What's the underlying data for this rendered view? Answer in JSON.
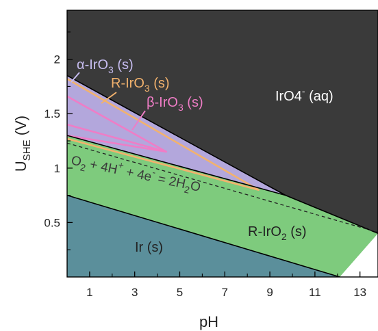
{
  "chart_data": {
    "type": "area",
    "xlabel": "pH",
    "ylabel_main": "U",
    "ylabel_sub": "SHE",
    "ylabel_unit": " (V)",
    "xlim": [
      0,
      13.8
    ],
    "ylim": [
      0.0,
      2.45
    ],
    "xticks_major": [
      1,
      3,
      5,
      7,
      9,
      11,
      13
    ],
    "xticks_minor": [
      2,
      4,
      6,
      8,
      10,
      12
    ],
    "yticks_major": [
      0.5,
      1,
      1.5,
      2
    ],
    "ytick_labels": [
      "0.5",
      "1",
      "1.5",
      "2"
    ],
    "yticks_minor": [
      0.25,
      0.75,
      1.25,
      1.75,
      2.25
    ],
    "colors": {
      "IrO4_aq": "#3a3a3a",
      "IrO3": "#b3a7dc",
      "IrO2": "#7ecb7d",
      "Ir": "#5b8f9b",
      "R_IrO3_line": "#f2b26d",
      "beta_IrO3_line": "#ef7dc6"
    },
    "regions": [
      {
        "label": "IrO4",
        "sup": "-",
        "tail": " (aq)",
        "color": "#3a3a3a",
        "text_color": "#ffffff",
        "polygon": [
          [
            0,
            2.45
          ],
          [
            13.8,
            2.45
          ],
          [
            13.8,
            0.4
          ],
          [
            9.7,
            0.75
          ],
          [
            0,
            1.85
          ]
        ]
      },
      {
        "label": "α-IrO",
        "sub": "3",
        "tail": " (s)",
        "color": "#b3a7dc",
        "text_color": "#c7bdf0",
        "polygon": [
          [
            0,
            1.85
          ],
          [
            9.7,
            0.75
          ],
          [
            0,
            1.3
          ]
        ]
      },
      {
        "label": "R-IrO",
        "sub": "2",
        "tail": " (s)",
        "color": "#7ecb7d",
        "text_color": "#222222",
        "polygon": [
          [
            0,
            1.3
          ],
          [
            9.7,
            0.75
          ],
          [
            13.8,
            0.4
          ],
          [
            12.1,
            0
          ],
          [
            0,
            0
          ],
          [
            0,
            0.75
          ]
        ]
      },
      {
        "label": "Ir",
        "tail": " (s)",
        "color": "#5b8f9b",
        "text_color": "#222222",
        "polygon": [
          [
            0,
            0.75
          ],
          [
            12.1,
            0
          ],
          [
            0,
            0
          ]
        ]
      }
    ],
    "lines": [
      {
        "name": "R-IrO3",
        "color": "#f2b26d",
        "points": [
          [
            0,
            1.82
          ],
          [
            8.5,
            0.8
          ],
          [
            0,
            1.27
          ]
        ]
      },
      {
        "name": "β-IrO3",
        "color": "#ef7dc6",
        "points": [
          [
            0,
            1.66
          ],
          [
            4.4,
            1.15
          ],
          [
            0,
            1.4
          ]
        ]
      },
      {
        "name": "β-IrO3 inner",
        "color": "#ef7dc6",
        "points": [
          [
            0,
            1.3
          ],
          [
            4.4,
            1.15
          ]
        ]
      }
    ],
    "boundaries": [
      {
        "points": [
          [
            0,
            1.85
          ],
          [
            9.7,
            0.75
          ],
          [
            13.8,
            0.4
          ]
        ]
      },
      {
        "points": [
          [
            0,
            1.3
          ],
          [
            9.7,
            0.75
          ]
        ]
      },
      {
        "points": [
          [
            0,
            0.75
          ],
          [
            12.1,
            0
          ]
        ]
      }
    ],
    "water_line": {
      "points": [
        [
          0,
          1.23
        ],
        [
          13.8,
          0.41
        ]
      ],
      "style": "dashed"
    },
    "annotations": [
      {
        "parts": [
          "α-IrO",
          "3",
          " (s)"
        ],
        "color": "#c7bdf0"
      },
      {
        "parts": [
          "R-IrO",
          "3",
          " (s)"
        ],
        "color": "#f2b26d"
      },
      {
        "parts": [
          "β-IrO",
          "3",
          " (s)"
        ],
        "color": "#ef7dc6"
      }
    ],
    "water_label": {
      "parts": [
        "O",
        "2",
        " + 4H",
        "+",
        " + 4e",
        "-",
        " = 2H",
        "2",
        "O"
      ]
    }
  }
}
